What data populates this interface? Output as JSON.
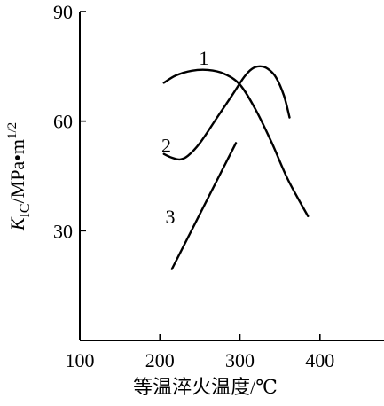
{
  "chart_data": {
    "type": "line",
    "title": "",
    "xlabel": "等温淬火温度/℃",
    "ylabel": {
      "symbol": "K",
      "subscript": "IC",
      "unit_prefix": "/MPa•m",
      "unit_exponent": "1/2"
    },
    "xlim": [
      100,
      480
    ],
    "ylim": [
      0,
      90
    ],
    "xticks": [
      100,
      200,
      300,
      400
    ],
    "yticks": [
      30,
      60,
      90
    ],
    "xtick_labels": [
      "100",
      "200",
      "300",
      "400"
    ],
    "ytick_labels": [
      "30",
      "60",
      "90"
    ],
    "grid": false,
    "legend": "none",
    "line_color": "#000000",
    "series": [
      {
        "name": "1",
        "x": [
          205,
          220,
          240,
          260,
          280,
          300,
          320,
          340,
          360,
          385
        ],
        "y": [
          70.5,
          72.5,
          73.8,
          74,
          73,
          70,
          63,
          54,
          44,
          34
        ]
      },
      {
        "name": "2",
        "x": [
          205,
          215,
          225,
          235,
          250,
          270,
          290,
          305,
          315,
          325,
          335,
          345,
          355,
          362
        ],
        "y": [
          51,
          50,
          49.5,
          50.5,
          54,
          60.5,
          67,
          72,
          74.3,
          75,
          74.3,
          72,
          67,
          61
        ]
      },
      {
        "name": "3",
        "x": [
          215,
          295
        ],
        "y": [
          19.5,
          54
        ]
      }
    ]
  }
}
